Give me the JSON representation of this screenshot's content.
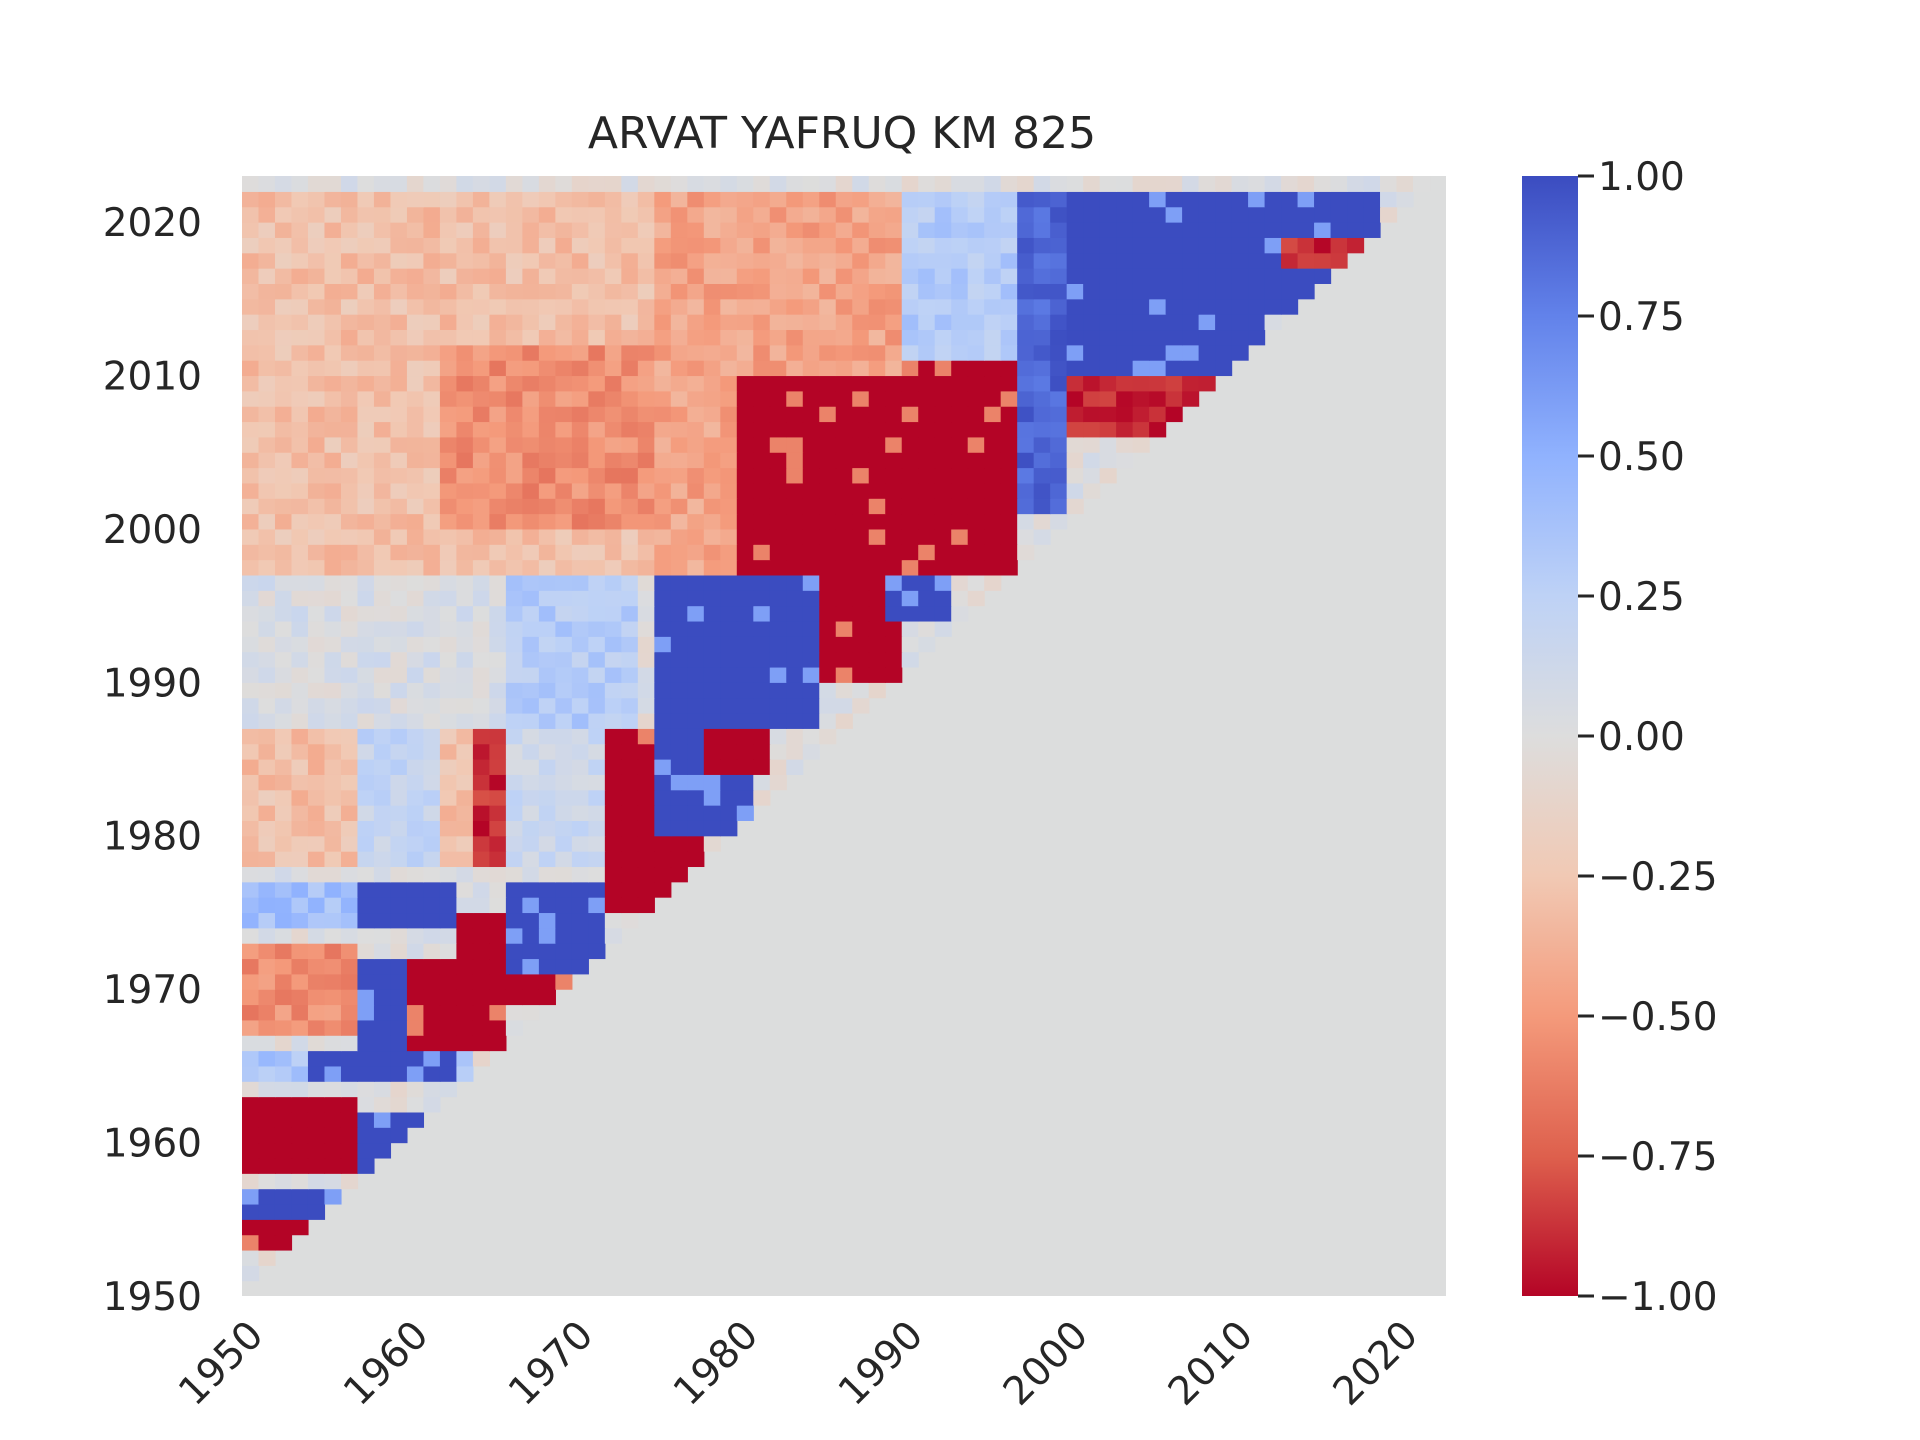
{
  "chart_data": {
    "type": "heatmap",
    "title": "ARVAT YAFRUQ KM 825",
    "xlabel": "",
    "ylabel": "",
    "x_range": [
      1950,
      2023
    ],
    "y_range": [
      1950,
      2023
    ],
    "x_ticks": [
      "1950",
      "1960",
      "1970",
      "1980",
      "1990",
      "2000",
      "2010",
      "2020"
    ],
    "y_ticks": [
      "1950",
      "1960",
      "1970",
      "1980",
      "1990",
      "2000",
      "2010",
      "2020"
    ],
    "masked_region": "upper-right triangle (end year <= start year)",
    "mask_color": "#dcdddd",
    "colormap": "coolwarm (reversed: blue = +1, red = -1)",
    "colorbar": {
      "min": -1.0,
      "max": 1.0,
      "ticks": [
        "1.00",
        "0.75",
        "0.50",
        "0.25",
        "0.00",
        "−0.25",
        "−0.50",
        "−0.75",
        "−1.00"
      ],
      "placement": "right"
    },
    "regions": [
      {
        "x": [
          1950,
          1957
        ],
        "y": [
          1953,
          1957
        ],
        "value": 1.0
      },
      {
        "x": [
          1950,
          1957
        ],
        "y": [
          1953,
          1955
        ],
        "value": -1.0
      },
      {
        "x": [
          1950,
          1957
        ],
        "y": [
          1958,
          1963
        ],
        "value": -1.0
      },
      {
        "x": [
          1957,
          1962
        ],
        "y": [
          1958,
          1962
        ],
        "value": 1.0
      },
      {
        "x": [
          1950,
          1964
        ],
        "y": [
          1964,
          1966
        ],
        "value": 0.35
      },
      {
        "x": [
          1954,
          1963
        ],
        "y": [
          1964,
          1966
        ],
        "value": 1.0
      },
      {
        "x": [
          1950,
          1957
        ],
        "y": [
          1967,
          1973
        ],
        "value": -0.55
      },
      {
        "x": [
          1957,
          1960
        ],
        "y": [
          1966,
          1972
        ],
        "value": 1.0
      },
      {
        "x": [
          1960,
          1966
        ],
        "y": [
          1966,
          1972
        ],
        "value": -1.0
      },
      {
        "x": [
          1963,
          1970
        ],
        "y": [
          1969,
          1975
        ],
        "value": -1.0
      },
      {
        "x": [
          1950,
          1957
        ],
        "y": [
          1974,
          1977
        ],
        "value": 0.4
      },
      {
        "x": [
          1957,
          1963
        ],
        "y": [
          1974,
          1977
        ],
        "value": 1.0
      },
      {
        "x": [
          1966,
          1972
        ],
        "y": [
          1971,
          1977
        ],
        "value": 1.0
      },
      {
        "x": [
          1950,
          1964
        ],
        "y": [
          1978,
          1987
        ],
        "value": -0.3
      },
      {
        "x": [
          1957,
          1962
        ],
        "y": [
          1978,
          1987
        ],
        "value": 0.2
      },
      {
        "x": [
          1964,
          1966
        ],
        "y": [
          1978,
          1987
        ],
        "value": -0.9
      },
      {
        "x": [
          1966,
          1972
        ],
        "y": [
          1978,
          1987
        ],
        "value": 0.15
      },
      {
        "x": [
          1972,
          1978
        ],
        "y": [
          1975,
          1987
        ],
        "value": -1.0
      },
      {
        "x": [
          1975,
          1981
        ],
        "y": [
          1980,
          1987
        ],
        "value": 1.0
      },
      {
        "x": [
          1978,
          1982
        ],
        "y": [
          1984,
          1987
        ],
        "value": -1.0
      },
      {
        "x": [
          1950,
          1974
        ],
        "y": [
          1987,
          1997
        ],
        "value": 0.05
      },
      {
        "x": [
          1966,
          1974
        ],
        "y": [
          1987,
          1997
        ],
        "value": 0.3
      },
      {
        "x": [
          1975,
          1985
        ],
        "y": [
          1987,
          1997
        ],
        "value": 1.0
      },
      {
        "x": [
          1985,
          1990
        ],
        "y": [
          1990,
          1997
        ],
        "value": -1.0
      },
      {
        "x": [
          1989,
          1993
        ],
        "y": [
          1994,
          1997
        ],
        "value": 1.0
      },
      {
        "x": [
          1950,
          1975
        ],
        "y": [
          1997,
          2022
        ],
        "value": -0.3
      },
      {
        "x": [
          1962,
          1975
        ],
        "y": [
          2000,
          2012
        ],
        "value": -0.55
      },
      {
        "x": [
          1975,
          1985
        ],
        "y": [
          1997,
          2022
        ],
        "value": -0.45
      },
      {
        "x": [
          1980,
          1994
        ],
        "y": [
          1997,
          2010
        ],
        "value": -1.0
      },
      {
        "x": [
          1985,
          1990
        ],
        "y": [
          2010,
          2022
        ],
        "value": -0.45
      },
      {
        "x": [
          1990,
          1997
        ],
        "y": [
          1997,
          2011
        ],
        "value": -1.0
      },
      {
        "x": [
          1990,
          1997
        ],
        "y": [
          2011,
          2022
        ],
        "value": 0.3
      },
      {
        "x": [
          1997,
          2000
        ],
        "y": [
          2001,
          2022
        ],
        "value": 0.9
      },
      {
        "x": [
          2000,
          2012
        ],
        "y": [
          2010,
          2022
        ],
        "value": 1.0
      },
      {
        "x": [
          2000,
          2010
        ],
        "y": [
          2006,
          2010
        ],
        "value": -0.9
      },
      {
        "x": [
          2012,
          2019
        ],
        "y": [
          2014,
          2022
        ],
        "value": 1.0
      },
      {
        "x": [
          2013,
          2019
        ],
        "y": [
          2017,
          2019
        ],
        "value": -0.9
      }
    ]
  }
}
